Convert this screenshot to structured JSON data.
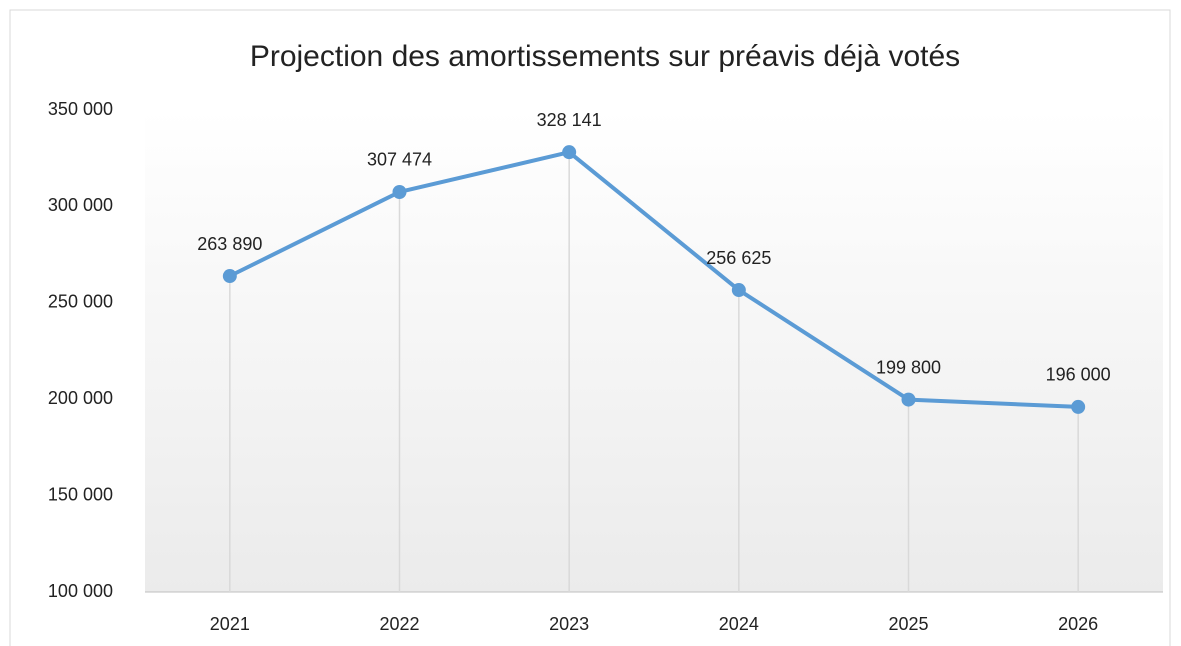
{
  "chart_data": {
    "type": "line",
    "title": "Projection des amortissements sur préavis déjà votés",
    "categories": [
      "2021",
      "2022",
      "2023",
      "2024",
      "2025",
      "2026"
    ],
    "values": [
      263890,
      307474,
      328141,
      256625,
      199800,
      196000
    ],
    "value_labels": [
      "263 890",
      "307 474",
      "328 141",
      "256 625",
      "199 800",
      "196 000"
    ],
    "color": "#5b9bd5",
    "ylim": [
      100000,
      350000
    ],
    "yticks": [
      {
        "value": 100000,
        "label": "100 000"
      },
      {
        "value": 150000,
        "label": "150 000"
      },
      {
        "value": 200000,
        "label": "200 000"
      },
      {
        "value": 250000,
        "label": "250 000"
      },
      {
        "value": 300000,
        "label": "300 000"
      },
      {
        "value": 350000,
        "label": "350 000"
      }
    ],
    "drop_lines": true,
    "grid": false
  }
}
